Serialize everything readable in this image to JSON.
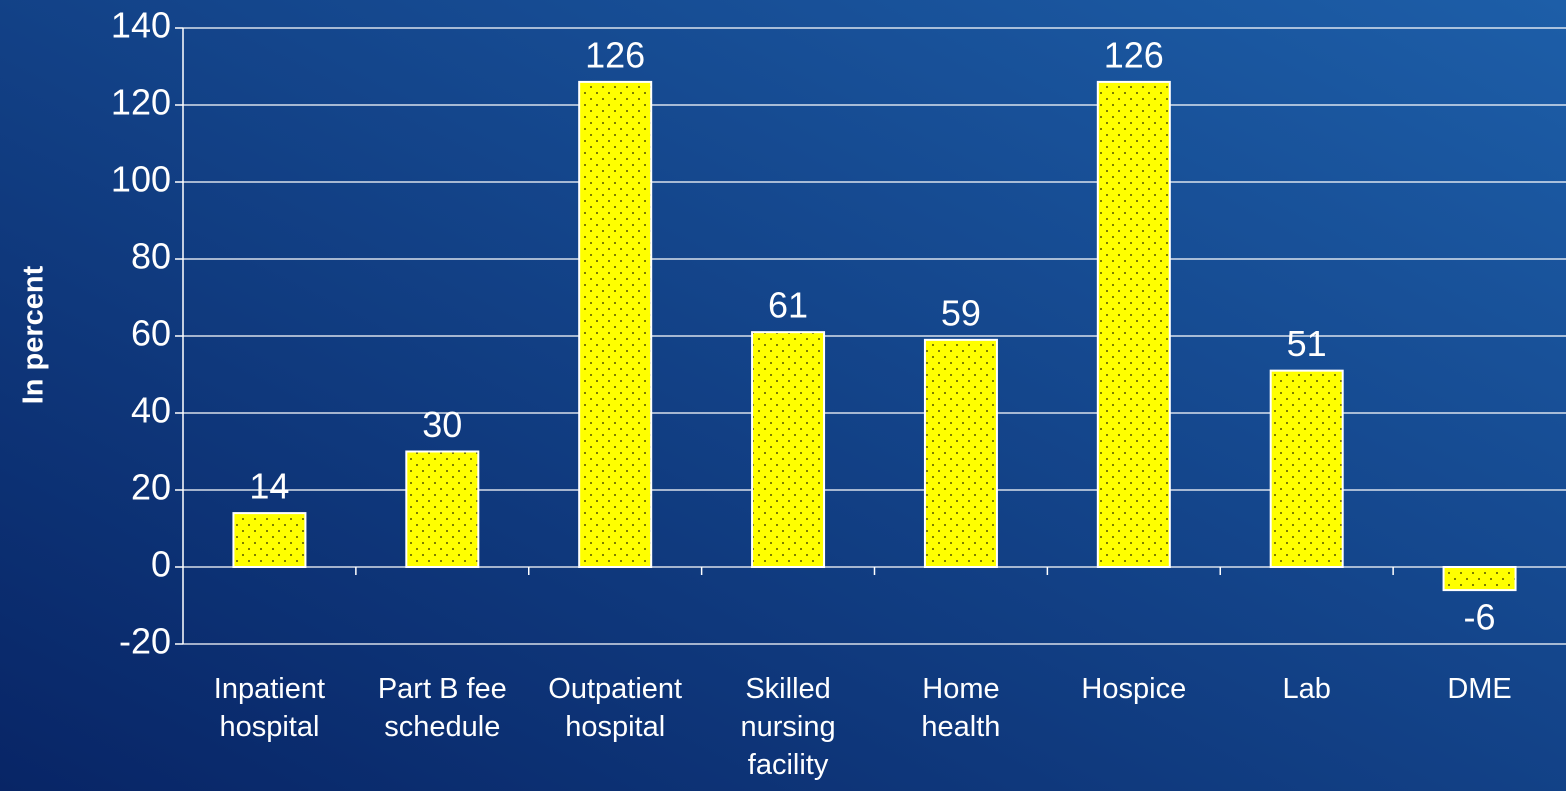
{
  "chart_data": {
    "type": "bar",
    "y_label": "In percent",
    "categories": [
      [
        "Inpatient",
        "hospital"
      ],
      [
        "Part B fee",
        "schedule"
      ],
      [
        "Outpatient",
        "hospital"
      ],
      [
        "Skilled",
        "nursing",
        "facility"
      ],
      [
        "Home",
        "health"
      ],
      [
        "Hospice"
      ],
      [
        "Lab"
      ],
      [
        "DME"
      ]
    ],
    "values": [
      14,
      30,
      126,
      61,
      59,
      126,
      51,
      -6
    ],
    "color": "#ffff00",
    "ylim": [
      -20,
      140
    ],
    "yticks": [
      -20,
      0,
      20,
      40,
      60,
      80,
      100,
      120,
      140
    ],
    "grid": true
  }
}
